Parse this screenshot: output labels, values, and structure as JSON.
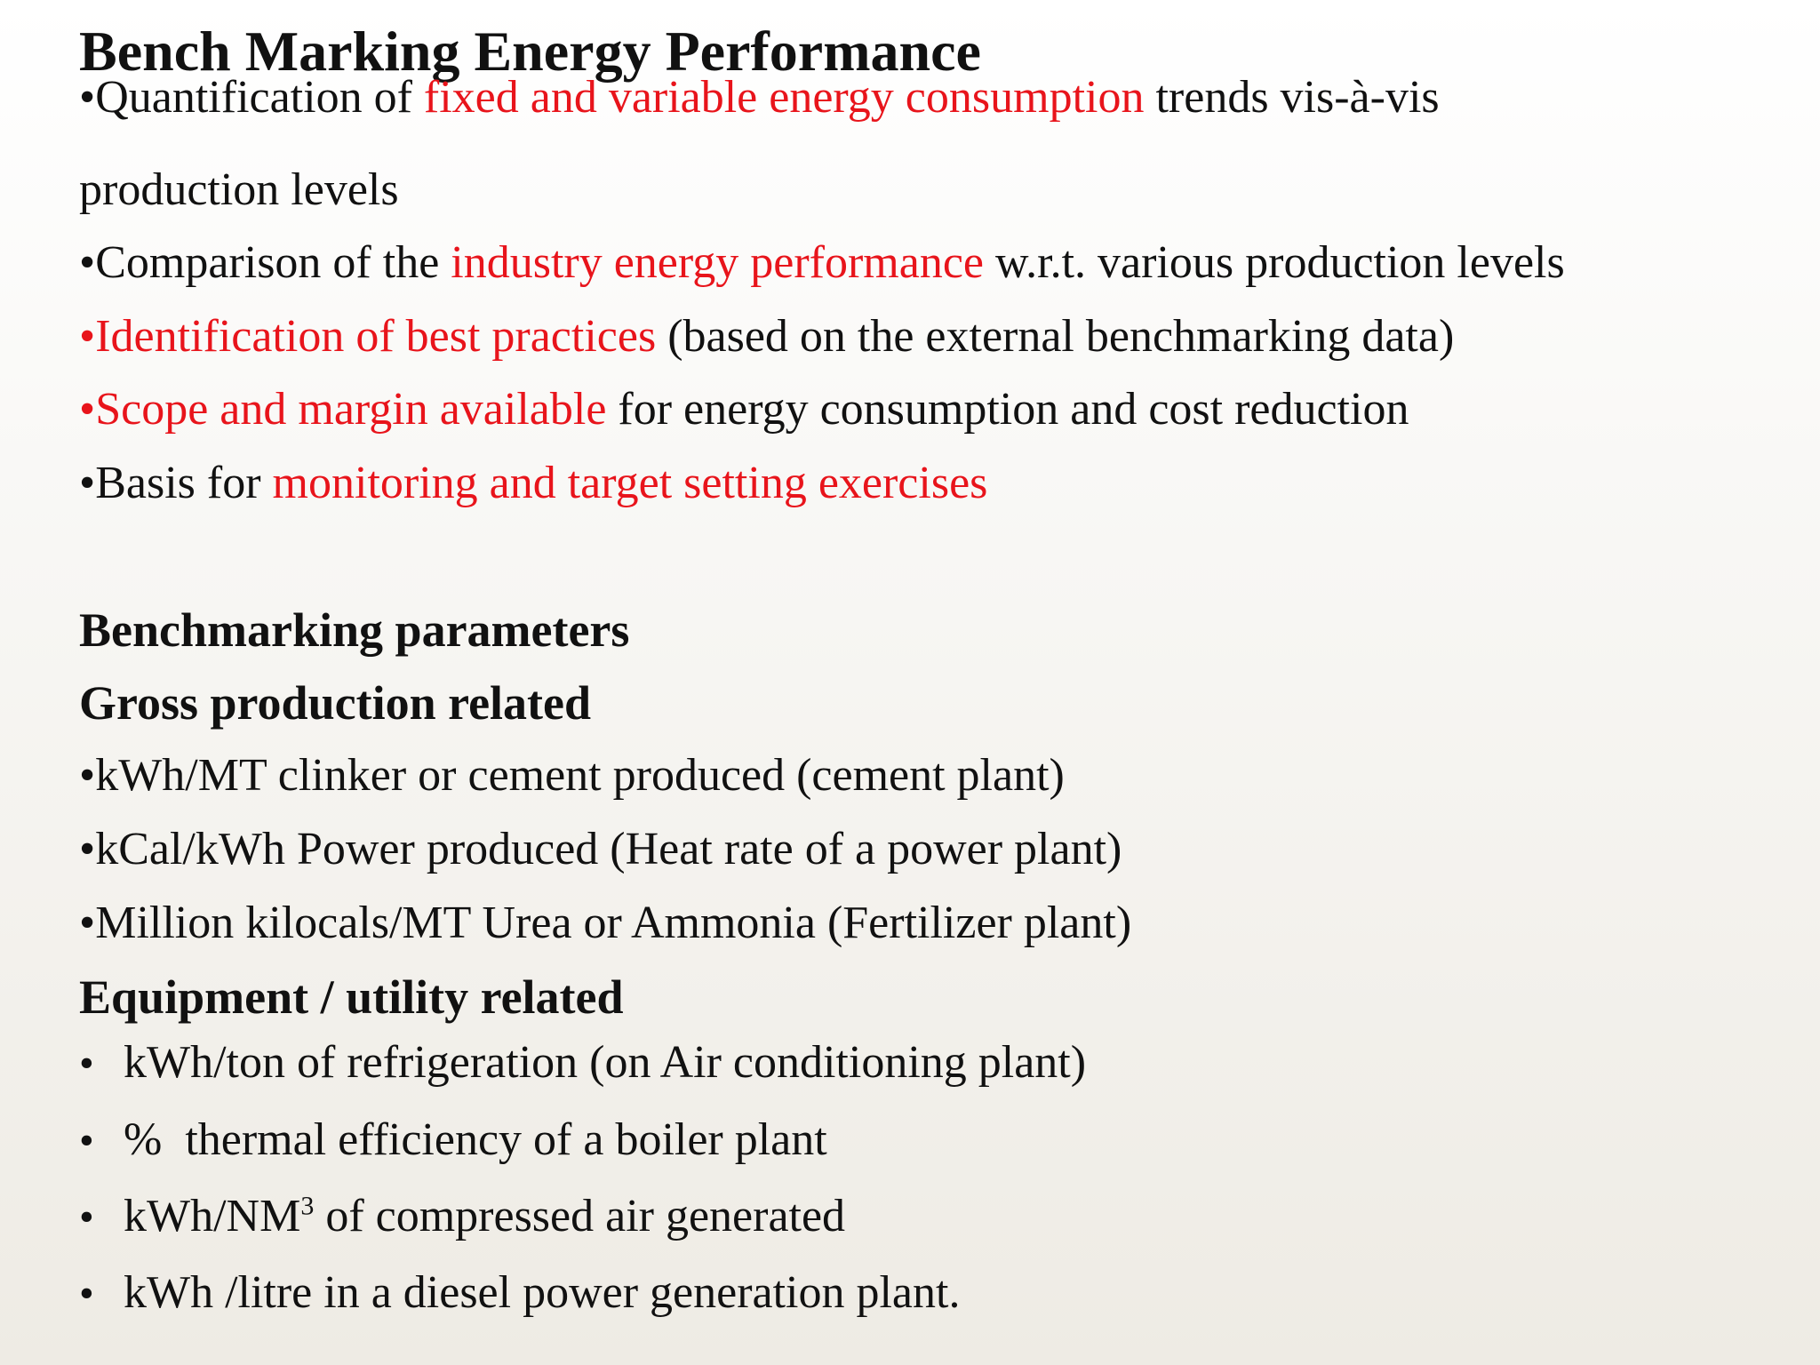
{
  "title": "Bench Marking Energy Performance",
  "bullet_symbol": "•",
  "intro_bullets": {
    "b1": {
      "pre": "Quantification of ",
      "red": "fixed and variable energy consumption",
      "post": " trends vis-à-vis",
      "cont": "production levels"
    },
    "b2": {
      "pre": "Comparison of the ",
      "red": "industry energy performance",
      "post": " w.r.t. various production levels"
    },
    "b3": {
      "red": "Identification of best practices",
      "post": " (based on the external benchmarking data)"
    },
    "b4": {
      "red": "Scope and margin available",
      "post": " for energy consumption and cost reduction"
    },
    "b5": {
      "pre": "Basis for ",
      "red": "monitoring and target setting exercises"
    }
  },
  "parameters_heading": "Benchmarking parameters",
  "gross_heading": "Gross production related",
  "gross_items": {
    "i1": "kWh/MT clinker or cement produced (cement plant)",
    "i2": "kCal/kWh Power produced (Heat rate of a power plant)",
    "i3": "Million kilocals/MT Urea or Ammonia (Fertilizer plant)"
  },
  "equipment_heading": "Equipment / utility related",
  "equipment_items": {
    "i1": "kWh/ton of refrigeration (on Air conditioning plant)",
    "i2": "%  thermal efficiency of a boiler plant",
    "i3_pre": "kWh/NM",
    "i3_sup": "3",
    "i3_post": " of compressed air generated",
    "i4": "kWh /litre in a diesel power generation plant."
  },
  "colors": {
    "highlight_red": "#e8141b",
    "text": "#111111"
  }
}
